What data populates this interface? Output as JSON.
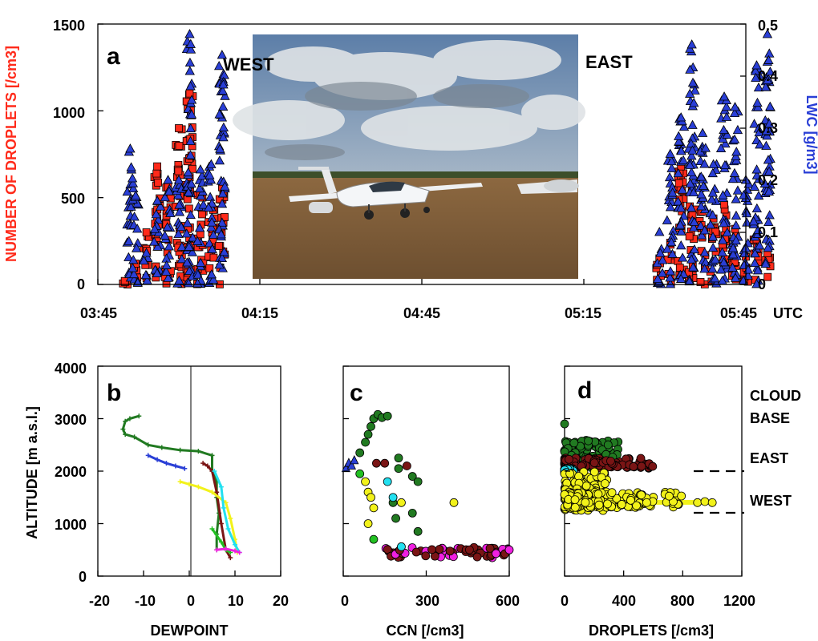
{
  "colors": {
    "droplets": "#ff2a1a",
    "lwc": "#2a3fd6",
    "dark_green": "#217a21",
    "dark_red": "#7a1515",
    "yellow": "#f2f21a",
    "cyan": "#22e0f0",
    "magenta": "#f020e0",
    "green": "#22c022",
    "blue": "#2a3fd6"
  },
  "panel_a": {
    "letter": "a",
    "west_label": "WEST",
    "east_label": "EAST",
    "ylabel_left": "NUMBER OF DROPLETS [/cm3]",
    "ylabel_right": "LWC [g/m3]",
    "yticks_left": [
      "0",
      "500",
      "1000",
      "1500"
    ],
    "yticks_right": [
      "0",
      "0.1",
      "0.2",
      "0.3",
      "0.4",
      "0.5"
    ],
    "xticks": [
      "03:45",
      "04:15",
      "04:45",
      "05:15",
      "05:45"
    ],
    "x_unit": "UTC"
  },
  "panel_b": {
    "letter": "b",
    "ylabel": "ALTITUDE [m a.s.l.]",
    "xlabel": "DEWPOINT",
    "yticks": [
      "0",
      "1000",
      "2000",
      "3000",
      "4000"
    ],
    "xticks": [
      "-20",
      "-10",
      "0",
      "10",
      "20"
    ]
  },
  "panel_c": {
    "letter": "c",
    "xlabel": "CCN [/cm3]",
    "xticks": [
      "0",
      "300",
      "600"
    ]
  },
  "panel_d": {
    "letter": "d",
    "xlabel": "DROPLETS [/cm3]",
    "xticks": [
      "0",
      "400",
      "800",
      "1200"
    ],
    "cloud_base_title": [
      "CLOUD",
      "BASE"
    ],
    "east_label": "EAST",
    "west_label": "WEST"
  },
  "chart_data": [
    {
      "type": "scatter",
      "panel": "a",
      "xlabel": "UTC",
      "ylabel": "NUMBER OF DROPLETS [/cm3]",
      "y2label": "LWC [g/m3]",
      "xlim": [
        "03:45",
        "05:45"
      ],
      "ylim": [
        0,
        1500
      ],
      "y2lim": [
        0,
        0.5
      ],
      "x_minutes_since_0345": true,
      "series": [
        {
          "name": "NUMBER OF DROPLETS [/cm3]",
          "marker": "square",
          "clusters": [
            {
              "x_range": [
                3.5,
                24
              ],
              "peaks": [
                [
                  5,
                  20
                ],
                [
                  7,
                  120
                ],
                [
                  9,
                  300
                ],
                [
                  11,
                  680
                ],
                [
                  13,
                  560
                ],
                [
                  15,
                  900
                ],
                [
                  17,
                  1100
                ],
                [
                  19,
                  520
                ],
                [
                  21,
                  450
                ],
                [
                  23,
                  560
                ]
              ]
            },
            {
              "x_range": [
                103,
                126
              ],
              "peaks": [
                [
                  104,
                  150
                ],
                [
                  106,
                  240
                ],
                [
                  108,
                  680
                ],
                [
                  110,
                  560
                ],
                [
                  112,
                  420
                ],
                [
                  114,
                  380
                ],
                [
                  116,
                  460
                ],
                [
                  118,
                  320
                ],
                [
                  120,
                  160
                ],
                [
                  122,
                  260
                ],
                [
                  124,
                  180
                ]
              ]
            }
          ]
        },
        {
          "name": "LWC [g/m3]",
          "marker": "triangle",
          "clusters": [
            {
              "x_range": [
                3.5,
                24
              ],
              "peaks": [
                [
                  6,
                  0.26
                ],
                [
                  7,
                  0.17
                ],
                [
                  9,
                  0.06
                ],
                [
                  11,
                  0.16
                ],
                [
                  13,
                  0.2
                ],
                [
                  15,
                  0.2
                ],
                [
                  17,
                  0.48
                ],
                [
                  19,
                  0.22
                ],
                [
                  21,
                  0.23
                ],
                [
                  23,
                  0.44
                ]
              ]
            },
            {
              "x_range": [
                103,
                126
              ],
              "peaks": [
                [
                  104,
                  0.1
                ],
                [
                  106,
                  0.25
                ],
                [
                  108,
                  0.32
                ],
                [
                  110,
                  0.46
                ],
                [
                  112,
                  0.29
                ],
                [
                  114,
                  0.23
                ],
                [
                  116,
                  0.36
                ],
                [
                  118,
                  0.34
                ],
                [
                  120,
                  0.2
                ],
                [
                  122,
                  0.42
                ],
                [
                  124,
                  0.48
                ]
              ]
            }
          ]
        }
      ]
    },
    {
      "type": "line",
      "panel": "b",
      "xlabel": "DEWPOINT",
      "ylabel": "ALTITUDE [m a.s.l.]",
      "xlim": [
        -20,
        20
      ],
      "ylim": [
        0,
        4000
      ],
      "series": [
        {
          "color": "dark_green",
          "points": [
            [
              -11,
              3050
            ],
            [
              -13,
              3000
            ],
            [
              -14,
              2950
            ],
            [
              -14.5,
              2800
            ],
            [
              -14,
              2700
            ],
            [
              -12,
              2650
            ],
            [
              -9,
              2500
            ],
            [
              -6,
              2450
            ],
            [
              -2,
              2400
            ],
            [
              2,
              2380
            ],
            [
              5,
              2300
            ],
            [
              5,
              2000
            ],
            [
              6,
              1800
            ],
            [
              6,
              1500
            ],
            [
              6.5,
              1200
            ],
            [
              6,
              800
            ],
            [
              6,
              500
            ]
          ]
        },
        {
          "color": "blue",
          "points": [
            [
              -9,
              2300
            ],
            [
              -7,
              2220
            ],
            [
              -5,
              2150
            ],
            [
              -3,
              2100
            ],
            [
              -1,
              2050
            ]
          ]
        },
        {
          "color": "dark_red",
          "points": [
            [
              3,
              2150
            ],
            [
              4,
              2100
            ],
            [
              5,
              2000
            ],
            [
              6,
              1600
            ],
            [
              7,
              1000
            ],
            [
              8,
              500
            ],
            [
              9,
              350
            ]
          ]
        },
        {
          "color": "yellow",
          "points": [
            [
              -2,
              1800
            ],
            [
              0,
              1750
            ],
            [
              2,
              1700
            ],
            [
              5,
              1600
            ],
            [
              8,
              1400
            ],
            [
              9,
              1100
            ],
            [
              10,
              700
            ],
            [
              10.5,
              450
            ]
          ]
        },
        {
          "color": "cyan",
          "points": [
            [
              5.5,
              2000
            ],
            [
              7,
              1700
            ],
            [
              7.5,
              1300
            ],
            [
              8.5,
              900
            ],
            [
              10,
              600
            ],
            [
              11,
              450
            ]
          ]
        },
        {
          "color": "green",
          "points": [
            [
              5,
              900
            ],
            [
              7,
              650
            ],
            [
              8,
              500
            ],
            [
              9,
              450
            ]
          ]
        },
        {
          "color": "magenta",
          "points": [
            [
              6,
              500
            ],
            [
              8,
              520
            ],
            [
              10,
              480
            ],
            [
              11,
              450
            ]
          ]
        }
      ]
    },
    {
      "type": "scatter",
      "panel": "c",
      "xlabel": "CCN [/cm3]",
      "ylabel": "ALTITUDE [m a.s.l.]",
      "xlim": [
        0,
        600
      ],
      "ylim": [
        0,
        4000
      ],
      "points": [
        [
          10,
          2050,
          "blue"
        ],
        [
          20,
          2150,
          "blue"
        ],
        [
          30,
          2100,
          "blue"
        ],
        [
          40,
          2200,
          "blue"
        ],
        [
          60,
          2350,
          "dark_green"
        ],
        [
          80,
          2550,
          "dark_green"
        ],
        [
          90,
          2700,
          "dark_green"
        ],
        [
          100,
          2850,
          "dark_green"
        ],
        [
          110,
          3000,
          "dark_green"
        ],
        [
          125,
          3080,
          "dark_green"
        ],
        [
          140,
          3020,
          "dark_green"
        ],
        [
          160,
          3050,
          "dark_green"
        ],
        [
          120,
          2150,
          "dark_red"
        ],
        [
          150,
          2150,
          "dark_red"
        ],
        [
          230,
          2100,
          "dark_red"
        ],
        [
          200,
          2050,
          "dark_green"
        ],
        [
          250,
          1900,
          "dark_green"
        ],
        [
          270,
          1800,
          "dark_green"
        ],
        [
          180,
          1400,
          "dark_green"
        ],
        [
          190,
          1100,
          "dark_green"
        ],
        [
          270,
          850,
          "dark_green"
        ],
        [
          250,
          1200,
          "dark_green"
        ],
        [
          400,
          1400,
          "yellow"
        ],
        [
          200,
          2250,
          "dark_green"
        ],
        [
          60,
          1950,
          "green"
        ],
        [
          80,
          1800,
          "yellow"
        ],
        [
          90,
          1600,
          "yellow"
        ],
        [
          100,
          1500,
          "yellow"
        ],
        [
          110,
          1300,
          "yellow"
        ],
        [
          160,
          1800,
          "cyan"
        ],
        [
          180,
          1500,
          "cyan"
        ],
        [
          210,
          1400,
          "yellow"
        ],
        [
          90,
          1000,
          "yellow"
        ],
        [
          110,
          700,
          "green"
        ],
        [
          210,
          560,
          "cyan"
        ]
      ],
      "band": {
        "altitude_range": [
          350,
          550
        ],
        "x_range": [
          150,
          600
        ],
        "colors": [
          "dark_red",
          "magenta",
          "dark_red"
        ],
        "end_point": [
          600,
          500,
          "magenta"
        ]
      }
    },
    {
      "type": "scatter",
      "panel": "d",
      "xlabel": "DROPLETS [/cm3]",
      "ylabel": "ALTITUDE [m a.s.l.]",
      "xlim": [
        0,
        1200
      ],
      "ylim": [
        0,
        4000
      ],
      "clusters": [
        {
          "color": "dark_green",
          "altitude_range": [
            2050,
            2600
          ],
          "x_range": [
            0,
            370
          ]
        },
        {
          "color": "dark_red",
          "altitude_range": [
            2050,
            2250
          ],
          "x_range": [
            0,
            600
          ]
        },
        {
          "color": "cyan",
          "altitude_range": [
            1950,
            2050
          ],
          "x_range": [
            0,
            60
          ]
        },
        {
          "color": "yellow",
          "altitude_range": [
            1250,
            2000
          ],
          "x_range": [
            0,
            300
          ]
        },
        {
          "color": "yellow",
          "altitude_range": [
            1300,
            1600
          ],
          "x_range": [
            0,
            800
          ],
          "tail": [
            [
              900,
              1400
            ],
            [
              950,
              1420
            ],
            [
              1000,
              1400
            ]
          ]
        }
      ],
      "cloud_base": {
        "east": 2000,
        "west": 1200
      }
    }
  ]
}
